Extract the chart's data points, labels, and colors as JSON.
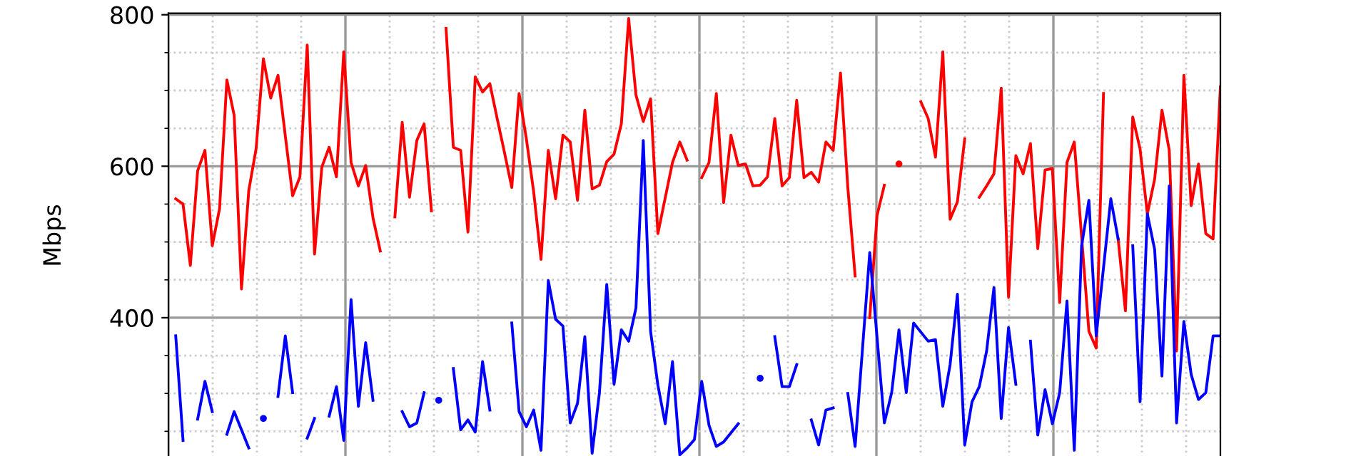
{
  "chart_data": {
    "type": "line",
    "ylabel": "Mbps",
    "categories": [
      null,
      null,
      null,
      null,
      null,
      null,
      null,
      null,
      null,
      null,
      null,
      null,
      null,
      null,
      null,
      null,
      null,
      null,
      null,
      null,
      null,
      null,
      null,
      null,
      null,
      null,
      null,
      null,
      null,
      null,
      null,
      null,
      null,
      null,
      null,
      null,
      null,
      null,
      null,
      null,
      null,
      null,
      null,
      null,
      null,
      null,
      null,
      null,
      null,
      null,
      null,
      null,
      null,
      null,
      null,
      null,
      null,
      null,
      null,
      null,
      null,
      null,
      null,
      null,
      null,
      null,
      null,
      null,
      null,
      null,
      null,
      null,
      null,
      null,
      null,
      null,
      null,
      null,
      null,
      null,
      null,
      null,
      null,
      null,
      null,
      null,
      null,
      null,
      null,
      null,
      null,
      null,
      null,
      null,
      null,
      null,
      null,
      null,
      null,
      null,
      null,
      null,
      null,
      null,
      null,
      null,
      null,
      null,
      null,
      null,
      null,
      null,
      null,
      null,
      null,
      null,
      null,
      null,
      null,
      null,
      null,
      null,
      null,
      null,
      null,
      null,
      null,
      null,
      null,
      null,
      null,
      null,
      null,
      null,
      null,
      null,
      null,
      null,
      null,
      null,
      null,
      null,
      null,
      null,
      null
    ],
    "series": [
      {
        "color": "#ff0000",
        "values": [
          null,
          557,
          550,
          469,
          594,
          621,
          495,
          544,
          714,
          667,
          438,
          568,
          623,
          742,
          690,
          720,
          640,
          561,
          586,
          760,
          484,
          599,
          625,
          586,
          751,
          605,
          574,
          601,
          532,
          488,
          null,
          533,
          658,
          559,
          634,
          656,
          541,
          null,
          782,
          625,
          621,
          513,
          718,
          698,
          709,
          663,
          618,
          572,
          696,
          636,
          566,
          477,
          621,
          557,
          641,
          632,
          555,
          674,
          570,
          575,
          606,
          616,
          656,
          795,
          694,
          659,
          689,
          511,
          558,
          605,
          632,
          608,
          null,
          585,
          605,
          696,
          552,
          641,
          601,
          603,
          574,
          575,
          586,
          663,
          574,
          585,
          687,
          585,
          592,
          579,
          632,
          621,
          723,
          572,
          455,
          null,
          400,
          535,
          575,
          null,
          603,
          null,
          null,
          685,
          663,
          612,
          751,
          530,
          553,
          636,
          null,
          559,
          574,
          590,
          703,
          427,
          614,
          590,
          630,
          491,
          595,
          597,
          420,
          605,
          632,
          507,
          382,
          360,
          696,
          null,
          504,
          409,
          665,
          623,
          537,
          583,
          674,
          621,
          356,
          720,
          548,
          603,
          511,
          504,
          705
        ]
      },
      {
        "color": "#0000ff",
        "values": [
          null,
          376,
          238,
          null,
          266,
          316,
          276,
          null,
          246,
          276,
          252,
          228,
          null,
          267,
          null,
          296,
          376,
          301,
          null,
          241,
          267,
          null,
          270,
          309,
          238,
          424,
          283,
          367,
          291,
          null,
          null,
          null,
          276,
          256,
          261,
          301,
          null,
          291,
          null,
          333,
          252,
          265,
          249,
          342,
          278,
          null,
          null,
          393,
          276,
          256,
          278,
          225,
          449,
          398,
          389,
          261,
          287,
          375,
          221,
          301,
          444,
          312,
          384,
          369,
          413,
          634,
          382,
          311,
          260,
          342,
          219,
          228,
          239,
          316,
          258,
          230,
          236,
          248,
          260,
          null,
          null,
          320,
          null,
          375,
          309,
          309,
          338,
          null,
          265,
          232,
          278,
          281,
          null,
          300,
          230,
          358,
          486,
          374,
          261,
          301,
          384,
          301,
          393,
          381,
          369,
          371,
          283,
          338,
          431,
          232,
          289,
          309,
          356,
          440,
          267,
          387,
          312,
          null,
          369,
          245,
          305,
          260,
          301,
          422,
          225,
          495,
          555,
          376,
          466,
          557,
          504,
          null,
          495,
          289,
          537,
          490,
          323,
          574,
          261,
          395,
          325,
          292,
          301,
          376,
          376
        ]
      }
    ],
    "ylim": [
      215,
      802
    ],
    "yticks": [
      400,
      600,
      800
    ],
    "tick_labels": "y",
    "grid": true,
    "marker": "none",
    "line_style": "solid"
  }
}
